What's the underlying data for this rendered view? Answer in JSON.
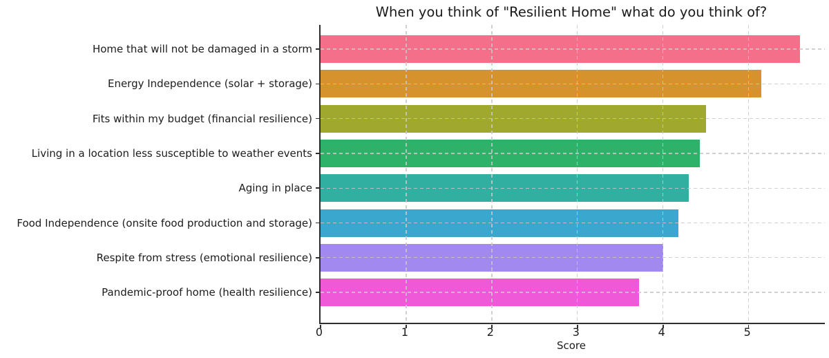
{
  "chart_data": {
    "type": "bar",
    "orientation": "horizontal",
    "title": "When you think of \"Resilient Home\" what do you think of?",
    "xlabel": "Score",
    "ylabel": "",
    "xlim": [
      0,
      5.89
    ],
    "x_ticks": [
      "0",
      "1",
      "2",
      "3",
      "4",
      "5"
    ],
    "grid": "dashed gridlines on both axes, drawn over bars",
    "legend": "none",
    "categories": [
      "Home that will not be damaged in a storm",
      "Energy Independence (solar + storage)",
      "Fits within my budget (financial resilience)",
      "Living in a location less susceptible to weather events",
      "Aging in place",
      "Food Independence (onsite food production and storage)",
      "Respite from stress (emotional resilience)",
      "Pandemic-proof home (health resilience)"
    ],
    "values": [
      5.6,
      5.15,
      4.5,
      4.43,
      4.3,
      4.18,
      4.0,
      3.72
    ],
    "bar_colors": [
      "#f4708a",
      "#d6922d",
      "#a0a92e",
      "#2eb26a",
      "#31afa0",
      "#39a7ce",
      "#a189ef",
      "#ef58d7"
    ]
  },
  "colors": {
    "background": "#ffffff",
    "grid": "#cccccc",
    "spine": "#2e2e2e",
    "text": "#1c1c1c"
  }
}
